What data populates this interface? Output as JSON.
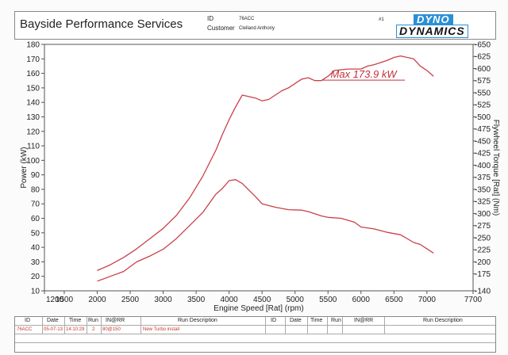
{
  "header": {
    "shop_name": "Bayside Performance Services",
    "id_label": "ID",
    "id_value": "76ACC",
    "customer_label": "Customer",
    "customer_value": "Clelland Anthony",
    "run_number": "#1",
    "logo_top": "DYNO",
    "logo_bottom": "DYNAMICS"
  },
  "chart_data": {
    "type": "line",
    "xlabel": "Engine Speed [Rat] (rpm)",
    "ylabel_left": "Power (kW)",
    "ylabel_right": "Flywheel Torque [Rat] (Nm)",
    "annotation": "Max 173.9 kW",
    "x_ticks": [
      1200,
      1500,
      2000,
      2500,
      3000,
      3500,
      4000,
      4500,
      5000,
      5500,
      6000,
      6500,
      7000,
      7700
    ],
    "x_tick_labels": [
      "1200",
      "1500",
      "2000",
      "2500",
      "3000",
      "3500",
      "4000",
      "4500",
      "5000",
      "5500",
      "6000",
      "6500",
      "7000",
      "7700"
    ],
    "xlim": [
      1200,
      7700
    ],
    "y_left_ticks": [
      10,
      20,
      30,
      40,
      50,
      60,
      70,
      80,
      90,
      100,
      110,
      120,
      130,
      140,
      150,
      160,
      170,
      180
    ],
    "ylim_left": [
      10,
      180
    ],
    "y_right_ticks": [
      140,
      175,
      200,
      225,
      250,
      275,
      300,
      325,
      350,
      375,
      400,
      425,
      450,
      475,
      500,
      525,
      550,
      575,
      600,
      625,
      650
    ],
    "ylim_right": [
      140,
      650
    ],
    "grid": false,
    "colors": {
      "curves": "#c9404a",
      "annotation": "#c0303a"
    },
    "series": [
      {
        "axis": "left",
        "x": [
          2000,
          2200,
          2400,
          2600,
          2800,
          3000,
          3200,
          3400,
          3600,
          3800,
          3900,
          4000,
          4100,
          4200,
          4400,
          4500,
          4600,
          4800,
          4900,
          5000,
          5100,
          5200,
          5300,
          5400,
          5500,
          5600,
          5800,
          6000,
          6100,
          6200,
          6400,
          6500,
          6600,
          6800,
          6900,
          7000,
          7100
        ],
        "values": [
          24,
          28,
          33,
          39,
          46,
          53,
          62,
          74,
          89,
          107,
          118,
          128,
          137,
          145,
          143,
          141,
          142,
          148,
          150,
          153,
          156,
          157,
          155,
          155,
          158,
          162,
          163,
          163,
          165,
          166,
          169,
          171,
          172,
          170,
          165,
          162,
          158
        ]
      },
      {
        "axis": "right",
        "x": [
          2000,
          2200,
          2400,
          2600,
          2800,
          3000,
          3200,
          3400,
          3600,
          3800,
          3900,
          4000,
          4100,
          4200,
          4400,
          4500,
          4700,
          4900,
          5100,
          5200,
          5400,
          5500,
          5700,
          5900,
          6000,
          6200,
          6400,
          6600,
          6800,
          6900,
          7000,
          7100
        ],
        "values": [
          160,
          170,
          180,
          200,
          212,
          226,
          248,
          275,
          302,
          340,
          352,
          368,
          370,
          362,
          335,
          320,
          313,
          308,
          307,
          304,
          295,
          292,
          290,
          282,
          272,
          268,
          261,
          256,
          240,
          236,
          227,
          218
        ]
      }
    ]
  },
  "run_table": {
    "headers_left": [
      "ID",
      "Date",
      "Time",
      "Run",
      "IN@RR",
      "Run Description"
    ],
    "headers_right": [
      "ID",
      "Date",
      "Time",
      "Run",
      "IN@RR",
      "Run Description"
    ],
    "row": [
      "76ACC",
      "05-07-13",
      "14:10:29",
      "2",
      "80@150",
      "New Turbo install"
    ]
  }
}
